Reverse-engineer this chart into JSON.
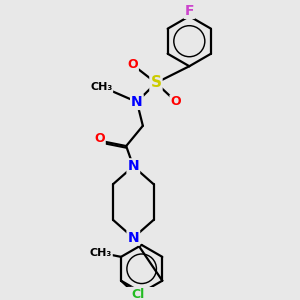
{
  "bg_color": "#e8e8e8",
  "atom_colors": {
    "C": "#000000",
    "N": "#0000ff",
    "O": "#ff0000",
    "S": "#cccc00",
    "F": "#cc44cc",
    "Cl": "#22bb22",
    "H_label": "#000000"
  },
  "bond_color": "#000000",
  "bond_width": 1.6,
  "font_size": 9
}
